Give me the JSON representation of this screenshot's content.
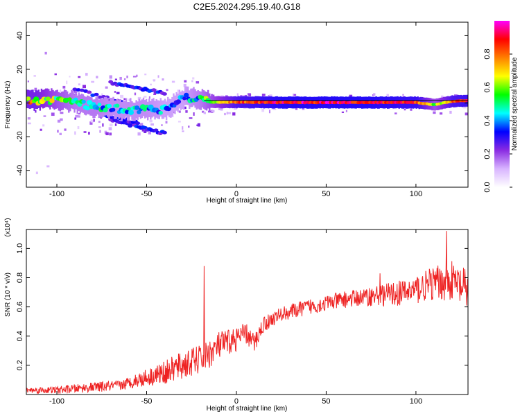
{
  "title": "C2E5.2024.295.19.40.G18",
  "colors": {
    "trace": "#ee2222",
    "baseline": "#000000",
    "frame": "#000000"
  },
  "chart_data": [
    {
      "type": "heatmap",
      "xlabel": "Height of straight line (km)",
      "ylabel": "Frequency (Hz)",
      "xlim": [
        -117,
        129
      ],
      "ylim": [
        -50,
        48
      ],
      "x_ticks": [
        -100,
        -50,
        0,
        50,
        100
      ],
      "y_ticks": [
        -40,
        -20,
        0,
        20,
        40
      ],
      "colorbar": {
        "label": "Normalized spectral amplitude",
        "range": [
          0,
          1
        ],
        "ticks": [
          "0.0",
          "0.2",
          "0.4",
          "0.6",
          "0.8"
        ],
        "colormap": [
          "#ffffff",
          "#d8b4ff",
          "#8a2be2",
          "#0000ff",
          "#00ffff",
          "#00ff00",
          "#ffff00",
          "#ff8000",
          "#ff0000",
          "#ff00ff"
        ]
      },
      "ridge": [
        {
          "x": -112,
          "freq": 1.5,
          "amp": 0.75
        },
        {
          "x": -100,
          "freq": 2.0,
          "amp": 0.6
        },
        {
          "x": -90,
          "freq": 0.5,
          "amp": 0.5
        },
        {
          "x": -80,
          "freq": -2.0,
          "amp": 0.5
        },
        {
          "x": -70,
          "freq": -3.0,
          "amp": 0.45
        },
        {
          "x": -60,
          "freq": -4.0,
          "amp": 0.45
        },
        {
          "x": -50,
          "freq": -3.5,
          "amp": 0.45
        },
        {
          "x": -40,
          "freq": -4.0,
          "amp": 0.4
        },
        {
          "x": -30,
          "freq": 3.0,
          "amp": 0.4
        },
        {
          "x": -20,
          "freq": 2.5,
          "amp": 0.5
        },
        {
          "x": -15,
          "freq": 0.5,
          "amp": 0.6
        },
        {
          "x": 0,
          "freq": 0.5,
          "amp": 0.85
        },
        {
          "x": 25,
          "freq": 0.3,
          "amp": 0.95
        },
        {
          "x": 50,
          "freq": 0.3,
          "amp": 0.95
        },
        {
          "x": 75,
          "freq": 0.3,
          "amp": 0.95
        },
        {
          "x": 100,
          "freq": 0.3,
          "amp": 0.9
        },
        {
          "x": 110,
          "freq": -1.0,
          "amp": 0.6
        },
        {
          "x": 120,
          "freq": 1.0,
          "amp": 0.85
        },
        {
          "x": 129,
          "freq": 1.5,
          "amp": 0.9
        }
      ],
      "side_tracks": [
        {
          "x": [
            -70,
            -40
          ],
          "freq": [
            12,
            6
          ]
        },
        {
          "x": [
            -90,
            -40
          ],
          "freq": [
            8,
            -6
          ]
        },
        {
          "x": [
            -70,
            -40
          ],
          "freq": [
            -10,
            -18
          ]
        },
        {
          "x": [
            -85,
            -55
          ],
          "freq": [
            -4,
            -12
          ]
        }
      ]
    },
    {
      "type": "line",
      "xlabel": "Height of straight line (km)",
      "ylabel": "SNR (10 * v/v)",
      "y_scale_note": "(x10⁴)",
      "xlim": [
        -117,
        129
      ],
      "ylim": [
        0,
        1.13
      ],
      "x_ticks": [
        -100,
        -50,
        0,
        50,
        100
      ],
      "y_ticks": [
        0.2,
        0.4,
        0.6,
        0.8,
        1.0
      ],
      "trend": [
        {
          "x": -117,
          "snr": 0.03
        },
        {
          "x": -100,
          "snr": 0.03
        },
        {
          "x": -80,
          "snr": 0.05
        },
        {
          "x": -65,
          "snr": 0.06
        },
        {
          "x": -55,
          "snr": 0.1
        },
        {
          "x": -40,
          "snr": 0.15
        },
        {
          "x": -30,
          "snr": 0.2
        },
        {
          "x": -25,
          "snr": 0.22
        },
        {
          "x": -18,
          "snr": 0.25
        },
        {
          "x": -10,
          "snr": 0.33
        },
        {
          "x": 0,
          "snr": 0.38
        },
        {
          "x": 5,
          "snr": 0.42
        },
        {
          "x": 10,
          "snr": 0.35
        },
        {
          "x": 15,
          "snr": 0.48
        },
        {
          "x": 25,
          "snr": 0.55
        },
        {
          "x": 40,
          "snr": 0.6
        },
        {
          "x": 60,
          "snr": 0.65
        },
        {
          "x": 80,
          "snr": 0.68
        },
        {
          "x": 95,
          "snr": 0.7
        },
        {
          "x": 100,
          "snr": 0.72
        },
        {
          "x": 110,
          "snr": 0.76
        },
        {
          "x": 120,
          "snr": 0.78
        },
        {
          "x": 129,
          "snr": 0.7
        }
      ],
      "noise_envelope": [
        {
          "x": -117,
          "amp": 0.02
        },
        {
          "x": -60,
          "amp": 0.04
        },
        {
          "x": -30,
          "amp": 0.1
        },
        {
          "x": -10,
          "amp": 0.1
        },
        {
          "x": 20,
          "amp": 0.05
        },
        {
          "x": 70,
          "amp": 0.06
        },
        {
          "x": 100,
          "amp": 0.1
        },
        {
          "x": 129,
          "amp": 0.15
        }
      ],
      "spikes": [
        {
          "x": -18,
          "snr": 0.88
        },
        {
          "x": 117,
          "snr": 1.12
        },
        {
          "x": 80,
          "snr": 0.83
        }
      ]
    }
  ]
}
